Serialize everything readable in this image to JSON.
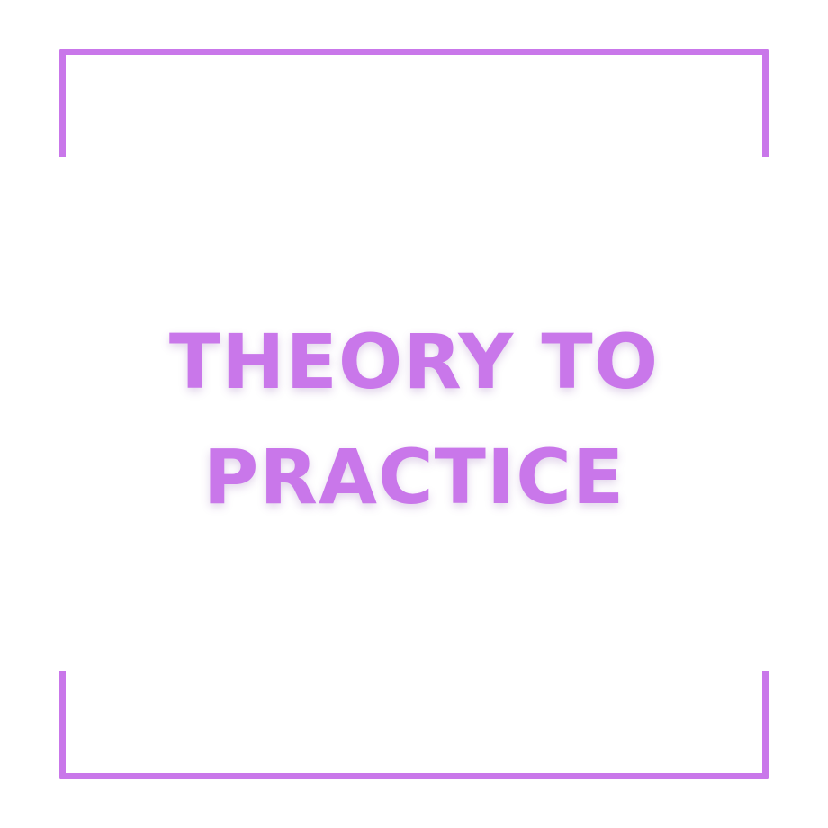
{
  "headline": {
    "line1": "THEORY TO",
    "line2": "PRACTICE"
  },
  "colors": {
    "accent": "#c977ea",
    "background": "#ffffff"
  }
}
